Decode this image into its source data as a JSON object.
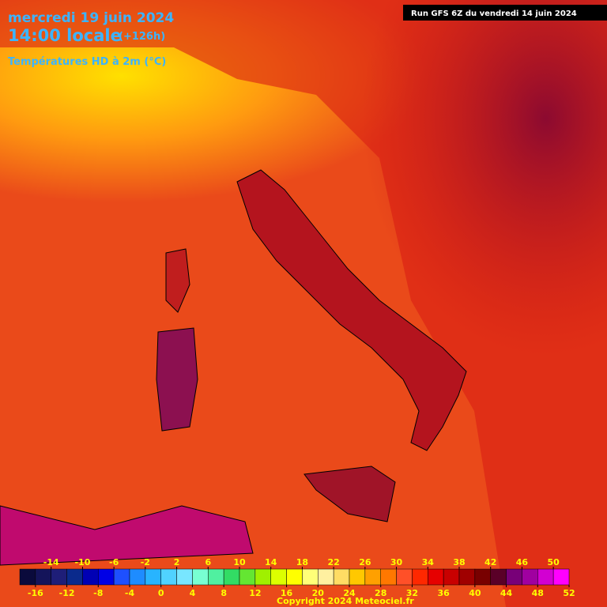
{
  "header": {
    "date": "mercredi 19 juin 2024",
    "time": "14:00 locale",
    "lead": "(+126h)",
    "parameter": "Températures HD à 2m (°C)",
    "run": "Run GFS 6Z du vendredi 14 juin 2024"
  },
  "legend": {
    "range": [
      -18,
      52
    ],
    "colors": [
      "#0a0a3c",
      "#14145a",
      "#1e1e78",
      "#0a2a8c",
      "#0000b4",
      "#0000e6",
      "#1e50ff",
      "#1e8cff",
      "#28b4ff",
      "#50d2ff",
      "#78e6ff",
      "#78ffd2",
      "#50f0a0",
      "#32dc64",
      "#64e632",
      "#a0f000",
      "#dcff00",
      "#ffff00",
      "#ffff78",
      "#fff0a0",
      "#ffdc64",
      "#ffc800",
      "#ffa000",
      "#ff7800",
      "#ff5028",
      "#ff2800",
      "#e60000",
      "#c80000",
      "#a00000",
      "#780000",
      "#5a0028",
      "#780078",
      "#a000a0",
      "#d200d2",
      "#ff00ff"
    ],
    "top_ticks": [
      -14,
      -10,
      -6,
      -2,
      2,
      6,
      10,
      14,
      18,
      22,
      26,
      30,
      34,
      38,
      42,
      46,
      50
    ],
    "bottom_ticks": [
      -16,
      -12,
      -8,
      -4,
      0,
      4,
      8,
      12,
      16,
      20,
      24,
      28,
      32,
      36,
      40,
      44,
      48,
      52
    ]
  },
  "footer": {
    "copyright": "Copyright 2024 Meteociel.fr"
  }
}
